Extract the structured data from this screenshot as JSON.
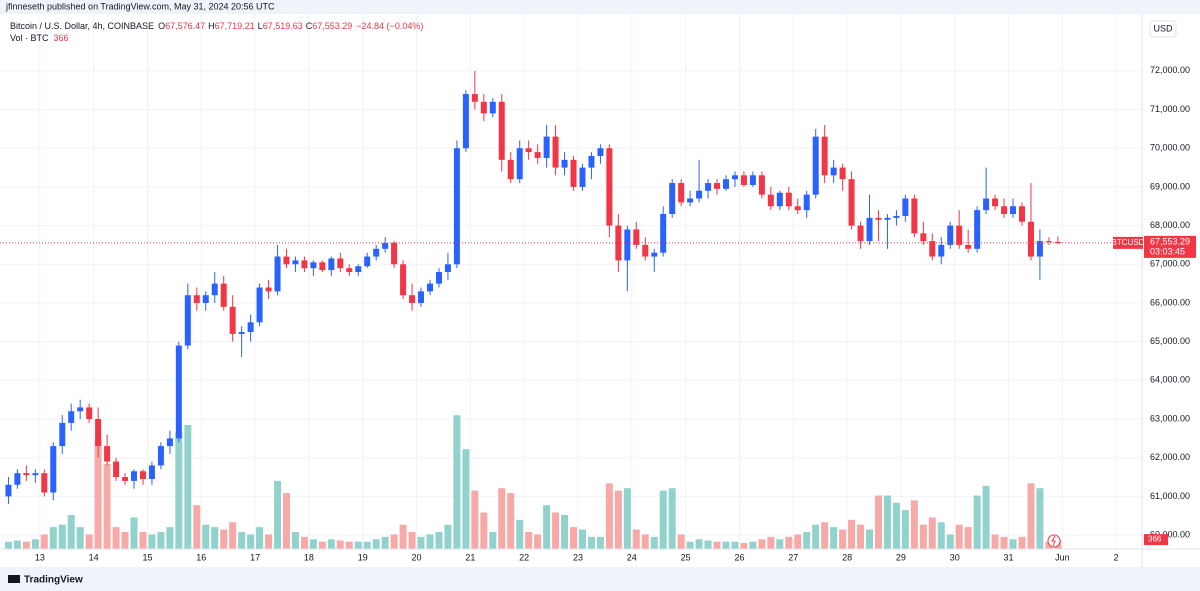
{
  "header": {
    "published": "jfinneseth published on TradingView.com, May 31, 2024 20:56 UTC",
    "symbol": "Bitcoin / U.S. Dollar, 4h, COINBASE",
    "ohlc": [
      {
        "key": "O",
        "value": "67,576.47"
      },
      {
        "key": "H",
        "value": "67,719.21"
      },
      {
        "key": "L",
        "value": "67,519.63"
      },
      {
        "key": "C",
        "value": "67,553.29"
      }
    ],
    "change": "−24.84 (−0.04%)",
    "volume_name": "Vol · BTC",
    "currency": "USD",
    "ticker": "BTCUSD",
    "last_price_label": "67,553.29",
    "countdown": "03:03:45",
    "brand": "TradingView"
  },
  "chart_data": {
    "type": "candlestick",
    "x": [
      12.417,
      12.583,
      12.75,
      12.917,
      13.083,
      13.25,
      13.417,
      13.583,
      13.75,
      13.917,
      14.083,
      14.25,
      14.417,
      14.583,
      14.75,
      14.917,
      15.083,
      15.25,
      15.417,
      15.583,
      15.75,
      15.917,
      16.083,
      16.25,
      16.417,
      16.583,
      16.75,
      16.917,
      17.083,
      17.25,
      17.417,
      17.583,
      17.75,
      17.917,
      18.083,
      18.25,
      18.417,
      18.583,
      18.75,
      18.917,
      19.083,
      19.25,
      19.417,
      19.583,
      19.75,
      19.917,
      20.083,
      20.25,
      20.417,
      20.583,
      20.75,
      20.917,
      21.083,
      21.25,
      21.417,
      21.583,
      21.75,
      21.917,
      22.083,
      22.25,
      22.417,
      22.583,
      22.75,
      22.917,
      23.083,
      23.25,
      23.417,
      23.583,
      23.75,
      23.917,
      24.083,
      24.25,
      24.417,
      24.583,
      24.75,
      24.917,
      25.083,
      25.25,
      25.417,
      25.583,
      25.75,
      25.917,
      26.083,
      26.25,
      26.417,
      26.583,
      26.75,
      26.917,
      27.083,
      27.25,
      27.417,
      27.583,
      27.75,
      27.917,
      28.083,
      28.25,
      28.417,
      28.583,
      28.75,
      28.917,
      29.083,
      29.25,
      29.417,
      29.583,
      29.75,
      29.917,
      30.083,
      30.25,
      30.417,
      30.583,
      30.75,
      30.917,
      31.083,
      31.25,
      31.417,
      31.583,
      31.75,
      31.917
    ],
    "open": [
      61000,
      61300,
      61600,
      61550,
      61600,
      61100,
      62300,
      62900,
      63200,
      63300,
      63000,
      62300,
      61900,
      61500,
      61400,
      61650,
      61450,
      61800,
      62300,
      62500,
      64900,
      66200,
      66000,
      66200,
      66500,
      65900,
      65200,
      65250,
      65500,
      66400,
      66300,
      67200,
      67000,
      67100,
      66900,
      67050,
      66850,
      67150,
      66900,
      66800,
      66950,
      67200,
      67400,
      67550,
      67000,
      66200,
      66000,
      66300,
      66500,
      66800,
      67000,
      70000,
      71400,
      71200,
      70900,
      71200,
      69700,
      69200,
      70000,
      69900,
      69750,
      70300,
      69500,
      69700,
      69000,
      69500,
      69800,
      70000,
      68000,
      67100,
      67900,
      67500,
      67200,
      67300,
      68300,
      69100,
      68600,
      68700,
      68900,
      69100,
      68950,
      69200,
      69300,
      69050,
      69300,
      68800,
      68500,
      68850,
      68500,
      68400,
      68800,
      70300,
      69300,
      69500,
      69200,
      68000,
      67600,
      68200,
      68150,
      68200,
      68250,
      68700,
      67800,
      67600,
      67200,
      67500,
      68000,
      67500,
      67400,
      68400,
      68700,
      68500,
      68300,
      68500,
      68100,
      67200,
      67600,
      67576.47
    ],
    "high": [
      61500,
      61700,
      61800,
      61700,
      61700,
      62400,
      63100,
      63400,
      63500,
      63400,
      63300,
      62600,
      62000,
      61600,
      61700,
      61700,
      61900,
      62400,
      62700,
      65000,
      66500,
      66400,
      66300,
      66800,
      66700,
      66200,
      65400,
      65700,
      66500,
      66600,
      67500,
      67400,
      67200,
      67200,
      67100,
      67100,
      67200,
      67300,
      67000,
      67000,
      67300,
      67500,
      67700,
      67600,
      67100,
      66500,
      66400,
      66600,
      66900,
      67300,
      70200,
      71500,
      72000,
      71400,
      71300,
      71400,
      69900,
      70200,
      70200,
      70100,
      70600,
      70600,
      69900,
      69800,
      69600,
      69900,
      70100,
      70100,
      68300,
      68000,
      68100,
      67700,
      67400,
      68500,
      69200,
      69200,
      68900,
      69700,
      69200,
      69200,
      69300,
      69400,
      69400,
      69400,
      69400,
      69000,
      68900,
      69000,
      68700,
      68900,
      70500,
      70600,
      69700,
      69600,
      69400,
      68100,
      68800,
      68400,
      68300,
      68400,
      68800,
      68800,
      68100,
      67800,
      67700,
      68100,
      68400,
      67900,
      68500,
      69500,
      68800,
      68700,
      68700,
      68600,
      69100,
      67900,
      67700,
      67719.21
    ],
    "low": [
      60800,
      61200,
      61400,
      61350,
      61000,
      60900,
      62100,
      62700,
      63000,
      62900,
      62000,
      61800,
      61400,
      61300,
      61200,
      61300,
      61300,
      61700,
      62100,
      62400,
      64800,
      65800,
      65800,
      66000,
      65800,
      65000,
      64600,
      65000,
      65400,
      66100,
      66200,
      66900,
      66800,
      66800,
      66700,
      66800,
      66700,
      66800,
      66700,
      66700,
      66900,
      67100,
      67300,
      66900,
      66100,
      65800,
      65900,
      66200,
      66400,
      66600,
      66900,
      69900,
      71000,
      70700,
      70800,
      69400,
      69100,
      69100,
      69700,
      69600,
      69500,
      69300,
      69300,
      68900,
      68900,
      69200,
      69600,
      67700,
      66800,
      66300,
      67400,
      67100,
      66800,
      67200,
      68200,
      68500,
      68500,
      68600,
      68700,
      68800,
      68900,
      69000,
      69000,
      69000,
      68700,
      68400,
      68400,
      68400,
      68300,
      68200,
      68700,
      69100,
      69100,
      68900,
      67900,
      67400,
      67500,
      67600,
      67400,
      68000,
      68100,
      67700,
      67500,
      67100,
      67000,
      67400,
      67400,
      67300,
      67300,
      68300,
      68400,
      68200,
      68200,
      68000,
      67100,
      66600,
      67500,
      67519.63
    ],
    "close": [
      61300,
      61600,
      61550,
      61600,
      61100,
      62300,
      62900,
      63200,
      63300,
      63000,
      62300,
      61900,
      61500,
      61400,
      61650,
      61450,
      61800,
      62300,
      62500,
      64900,
      66200,
      66000,
      66200,
      66500,
      65900,
      65200,
      65250,
      65500,
      66400,
      66300,
      67200,
      67000,
      67100,
      66900,
      67050,
      66850,
      67150,
      66900,
      66800,
      66950,
      67200,
      67400,
      67550,
      67000,
      66200,
      66000,
      66300,
      66500,
      66800,
      67000,
      70000,
      71400,
      71200,
      70900,
      71200,
      69700,
      69200,
      70000,
      69900,
      69750,
      70300,
      69500,
      69700,
      69000,
      69500,
      69800,
      70000,
      68000,
      67100,
      67900,
      67500,
      67200,
      67300,
      68300,
      69100,
      68600,
      68700,
      68900,
      69100,
      68950,
      69200,
      69300,
      69050,
      69300,
      68800,
      68500,
      68850,
      68500,
      68400,
      68800,
      70300,
      69300,
      69500,
      69200,
      68000,
      67600,
      68200,
      68150,
      68200,
      68250,
      68700,
      67800,
      67600,
      67200,
      67500,
      68000,
      67500,
      67400,
      68400,
      68700,
      68500,
      68300,
      68500,
      68100,
      67200,
      67600,
      67578.13,
      67553.29
    ],
    "volume": [
      300,
      350,
      300,
      400,
      600,
      900,
      1000,
      1400,
      900,
      600,
      4500,
      3500,
      900,
      700,
      1300,
      700,
      600,
      700,
      900,
      4800,
      5100,
      1800,
      1000,
      900,
      800,
      1100,
      700,
      600,
      900,
      600,
      2800,
      2300,
      700,
      500,
      400,
      300,
      400,
      350,
      300,
      300,
      300,
      400,
      500,
      600,
      1000,
      700,
      500,
      600,
      700,
      1000,
      5500,
      4100,
      2400,
      1500,
      700,
      2500,
      2300,
      1200,
      700,
      600,
      1800,
      1500,
      1400,
      900,
      800,
      500,
      500,
      2700,
      2400,
      2500,
      800,
      600,
      500,
      2400,
      2500,
      600,
      300,
      400,
      350,
      300,
      300,
      300,
      250,
      300,
      400,
      500,
      400,
      500,
      600,
      700,
      1000,
      1100,
      900,
      800,
      1200,
      1000,
      800,
      2200,
      2200,
      1900,
      1600,
      2000,
      1000,
      1300,
      1100,
      600,
      1000,
      900,
      2200,
      2600,
      600,
      500,
      400,
      500,
      2700,
      2500,
      300,
      366
    ],
    "up_color": "#2962ff",
    "down_color": "#f23645",
    "volume_up_color": "#92d2cc",
    "volume_down_color": "#f7a9a7",
    "last_price_color": "#f23645",
    "xlim": [
      12.26,
      33.48
    ],
    "xticks": [
      13,
      14,
      15,
      16,
      17,
      18,
      19,
      20,
      21,
      22,
      23,
      24,
      25,
      26,
      27,
      28,
      29,
      30,
      31,
      {
        "value": 32,
        "label": "Jun"
      },
      {
        "value": 33,
        "label": "2"
      }
    ],
    "ylim": [
      59640,
      73470
    ],
    "yticks": [
      {
        "value": 60000,
        "label": "60,000.00"
      },
      {
        "value": 61000,
        "label": "61,000.00"
      },
      {
        "value": 62000,
        "label": "62,000.00"
      },
      {
        "value": 63000,
        "label": "63,000.00"
      },
      {
        "value": 64000,
        "label": "64,000.00"
      },
      {
        "value": 65000,
        "label": "65,000.00"
      },
      {
        "value": 66000,
        "label": "66,000.00"
      },
      {
        "value": 67000,
        "label": "67,000.00"
      },
      {
        "value": 68000,
        "label": "68,000.00"
      },
      {
        "value": 69000,
        "label": "69,000.00"
      },
      {
        "value": 70000,
        "label": "70,000.00"
      },
      {
        "value": 71000,
        "label": "71,000.00"
      },
      {
        "value": 72000,
        "label": "72,000.00"
      }
    ],
    "y2lim": [
      0,
      22000
    ],
    "grid": true
  }
}
